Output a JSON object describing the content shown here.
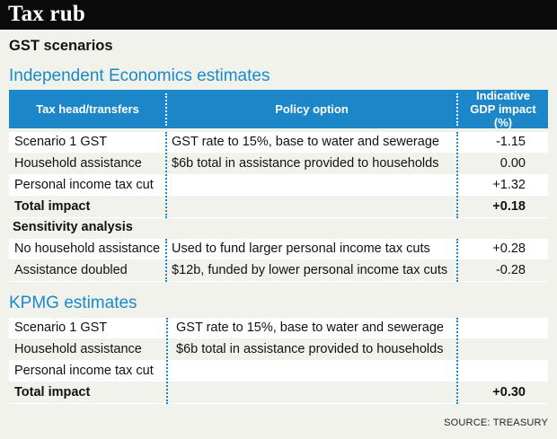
{
  "title": "Tax rub",
  "subtitle": "GST scenarios",
  "sections": {
    "ie_heading": "Independent Economics estimates",
    "kpmg_heading": "KPMG estimates",
    "sensitivity_label": "Sensitivity analysis"
  },
  "table_header": {
    "col1": "Tax head/transfers",
    "col2": "Policy option",
    "col3": "Indicative GDP impact (%)"
  },
  "ie_rows": [
    {
      "head": "Scenario 1 GST",
      "policy": "GST rate to 15%, base to water and sewerage",
      "impact": "-1.15"
    },
    {
      "head": "Household assistance",
      "policy": "$6b total in assistance provided to households",
      "impact": "0.00"
    },
    {
      "head": "Personal income tax cut",
      "policy": "",
      "impact": "+1.32"
    },
    {
      "head": "Total impact",
      "policy": "",
      "impact": "+0.18"
    }
  ],
  "sensitivity_rows": [
    {
      "head": "No household assistance",
      "policy": "Used to fund larger personal income tax cuts",
      "impact": "+0.28"
    },
    {
      "head": "Assistance doubled",
      "policy": "$12b, funded by lower personal income tax cuts",
      "impact": "-0.28"
    }
  ],
  "kpmg_rows": [
    {
      "head": "Scenario 1 GST",
      "policy": "GST rate to 15%, base to water and sewerage",
      "impact": ""
    },
    {
      "head": "Household assistance",
      "policy": "$6b total in assistance provided to households",
      "impact": ""
    },
    {
      "head": "Personal income tax cut",
      "policy": "",
      "impact": ""
    },
    {
      "head": "Total impact",
      "policy": "",
      "impact": "+0.30"
    }
  ],
  "source": "SOURCE: TREASURY",
  "colors": {
    "title_bar": "#0b0b0b",
    "accent": "#1c87c8",
    "background": "#f2f2ed"
  }
}
